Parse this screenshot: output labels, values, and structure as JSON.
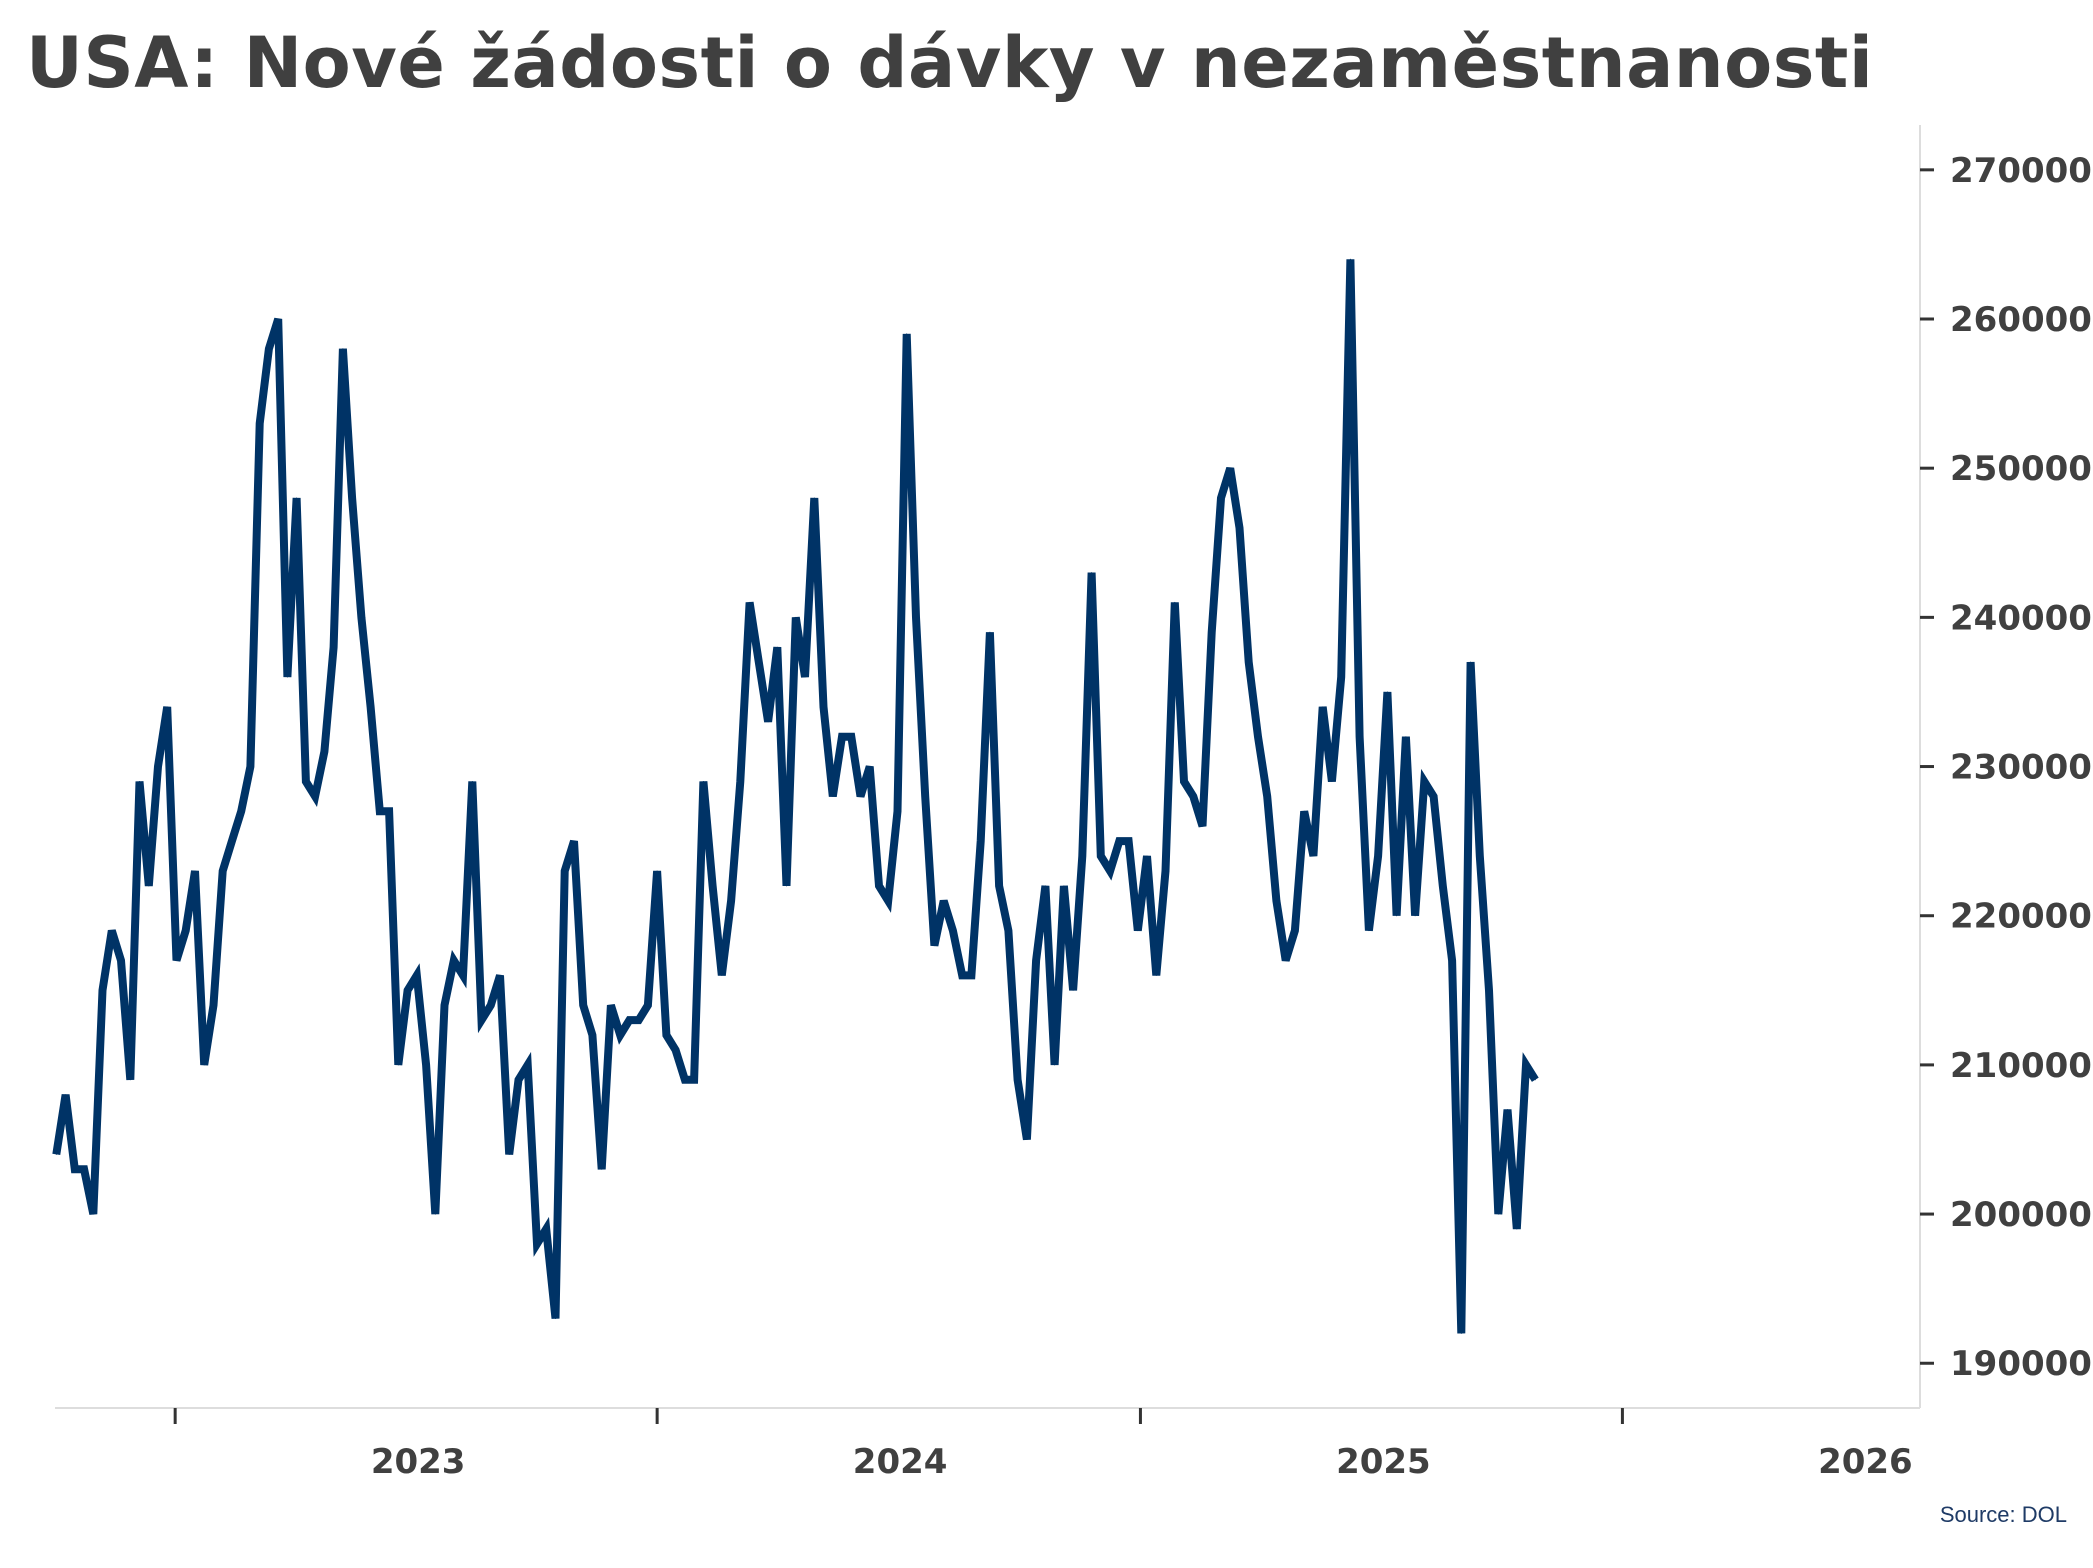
{
  "title": "USA: Nové žádosti o dávky v nezaměstnanosti",
  "source": "Source: DOL",
  "colors": {
    "line": "#003366",
    "text": "#404040",
    "axis": "#dddddd"
  },
  "chart_data": {
    "type": "line",
    "title": "USA: Nové žádosti o dávky v nezaměstnanosti",
    "xlabel": "",
    "ylabel": "",
    "y_axis_position": "right",
    "ylim": [
      187000,
      272000
    ],
    "yticks": [
      190000,
      200000,
      210000,
      220000,
      230000,
      240000,
      250000,
      260000,
      270000
    ],
    "ytick_labels": [
      "190000",
      "200000",
      "210000",
      "220000",
      "230000",
      "240000",
      "250000",
      "260000",
      "270000"
    ],
    "xlim": [
      "2022-04-01",
      "2026-01-31"
    ],
    "xtick_dates": [
      "2022-07-01",
      "2023-07-01",
      "2024-07-01",
      "2025-07-01"
    ],
    "xlabel_items": [
      {
        "label": "2023",
        "date": "2023-01-01"
      },
      {
        "label": "2024",
        "date": "2024-01-01"
      },
      {
        "label": "2025",
        "date": "2025-01-01"
      },
      {
        "label": "2026",
        "date": "2026-01-01"
      }
    ],
    "grid": false,
    "legend": "none",
    "series": [
      {
        "start": "2022-04-02",
        "interval_days": 7,
        "values": [
          204000,
          208000,
          203000,
          203000,
          200000,
          215000,
          219000,
          217000,
          209000,
          229000,
          222000,
          230000,
          234000,
          217000,
          219000,
          223000,
          210000,
          214000,
          223000,
          225000,
          227000,
          230000,
          253000,
          258000,
          260000,
          236000,
          248000,
          229000,
          228000,
          231000,
          238000,
          258000,
          248000,
          240000,
          234000,
          227000,
          227000,
          210000,
          215000,
          216000,
          210000,
          200000,
          214000,
          217000,
          216000,
          229000,
          213000,
          214000,
          216000,
          204000,
          209000,
          210000,
          198000,
          199000,
          193000,
          223000,
          225000,
          214000,
          212000,
          203000,
          214000,
          212000,
          213000,
          213000,
          214000,
          223000,
          212000,
          211000,
          209000,
          209000,
          229000,
          222000,
          216000,
          221000,
          229000,
          241000,
          237000,
          233000,
          238000,
          222000,
          240000,
          236000,
          248000,
          234000,
          228000,
          232000,
          232000,
          228000,
          230000,
          222000,
          221000,
          227000,
          259000,
          240000,
          228000,
          218000,
          221000,
          219000,
          216000,
          216000,
          225000,
          239000,
          222000,
          219000,
          209000,
          205000,
          217000,
          222000,
          210000,
          222000,
          215000,
          224000,
          243000,
          224000,
          223000,
          225000,
          225000,
          219000,
          224000,
          216000,
          223000,
          241000,
          229000,
          228000,
          226000,
          239000,
          248000,
          250000,
          246000,
          237000,
          232000,
          228000,
          221000,
          217000,
          219000,
          227000,
          224000,
          234000,
          229000,
          236000,
          264000,
          232000,
          219000,
          224000,
          235000,
          220000,
          232000,
          220000,
          229000,
          228000,
          222000,
          217000,
          192000,
          237000,
          224000,
          215000,
          200000,
          207000,
          199000,
          210000,
          209000
        ]
      }
    ]
  }
}
